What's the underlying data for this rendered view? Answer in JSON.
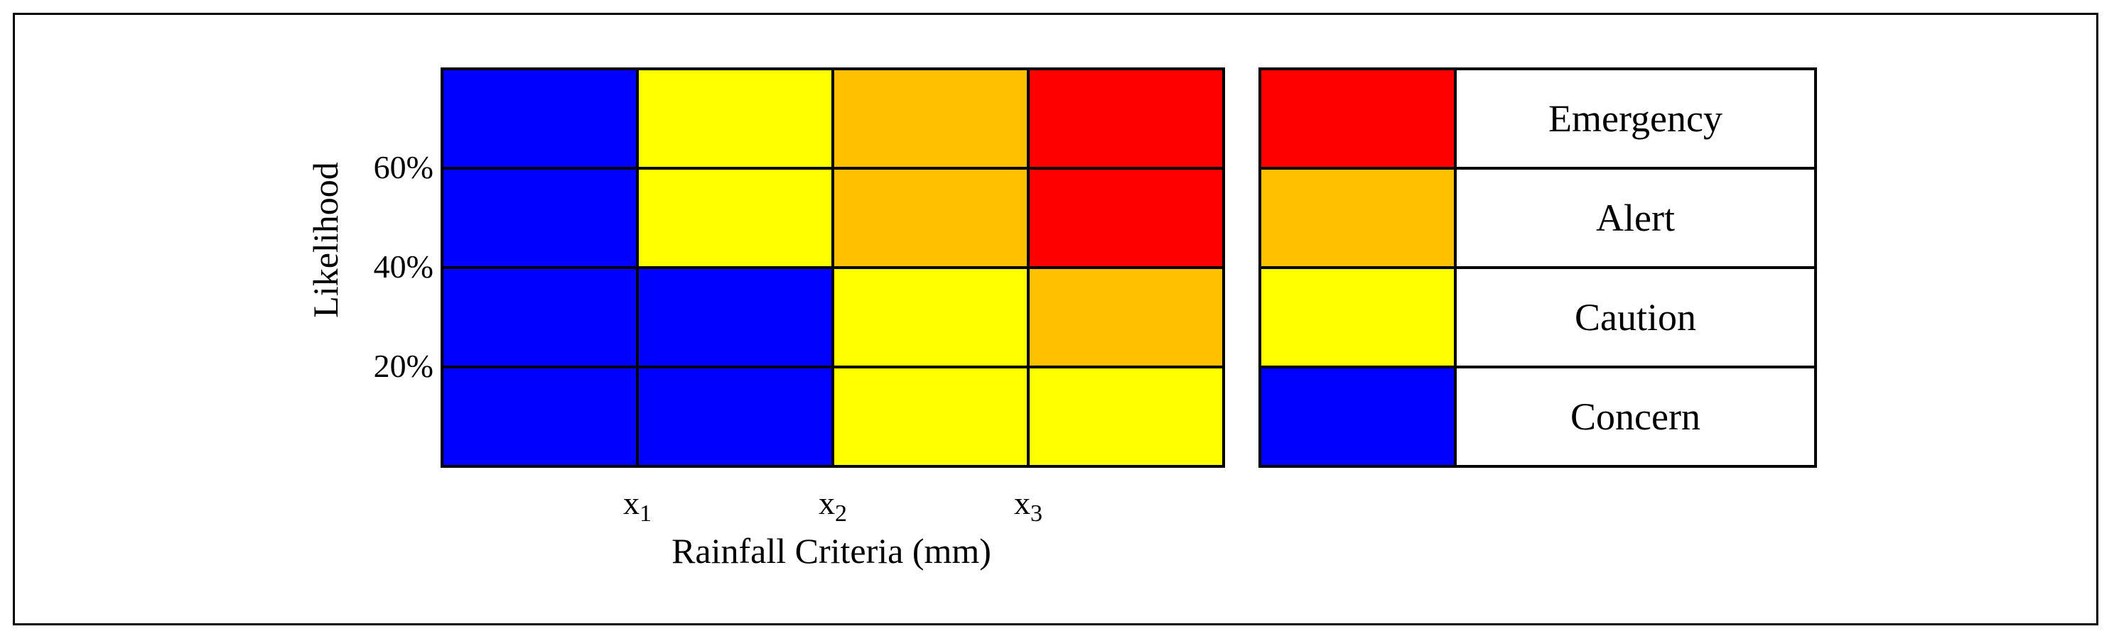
{
  "chart_data": {
    "type": "heatmap",
    "xlabel": "Rainfall Criteria (mm)",
    "ylabel": "Likelihood",
    "x_ticks": [
      {
        "base": "x",
        "sub": "1"
      },
      {
        "base": "x",
        "sub": "2"
      },
      {
        "base": "x",
        "sub": "3"
      }
    ],
    "y_ticks": [
      "20%",
      "40%",
      "60%"
    ],
    "rows_top_to_bottom": [
      [
        "Concern",
        "Caution",
        "Alert",
        "Emergency"
      ],
      [
        "Concern",
        "Caution",
        "Alert",
        "Emergency"
      ],
      [
        "Concern",
        "Concern",
        "Caution",
        "Alert"
      ],
      [
        "Concern",
        "Concern",
        "Caution",
        "Caution"
      ]
    ]
  },
  "legend": [
    {
      "label": "Emergency",
      "color": "#ff0000"
    },
    {
      "label": "Alert",
      "color": "#ffc000"
    },
    {
      "label": "Caution",
      "color": "#ffff00"
    },
    {
      "label": "Concern",
      "color": "#0000ff"
    }
  ]
}
